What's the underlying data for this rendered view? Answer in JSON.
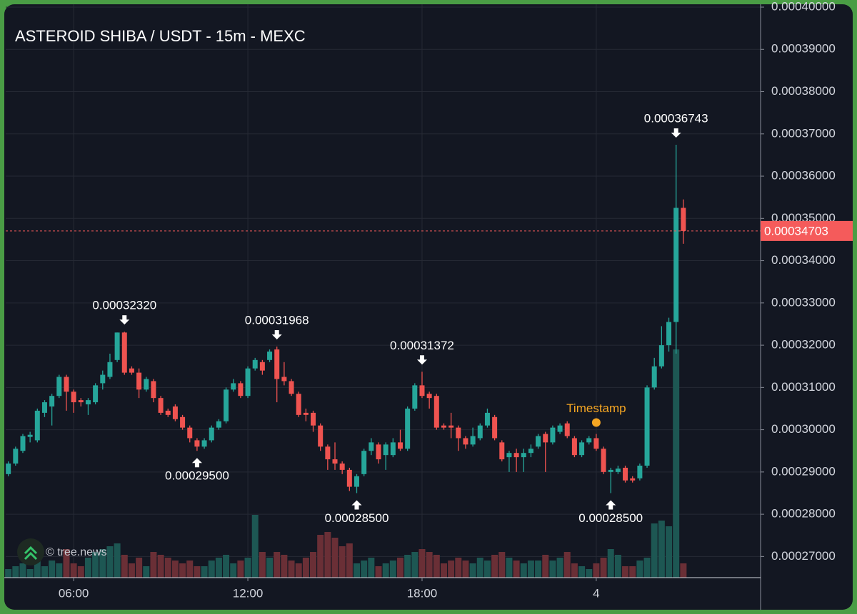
{
  "chart_data": {
    "type": "candlestick",
    "title": "ASTEROID SHIBA / USDT - 15m - MEXC",
    "x": [
      3.75,
      4,
      4.25,
      4.5,
      4.75,
      5,
      5.25,
      5.5,
      5.75,
      6,
      6.25,
      6.5,
      6.75,
      7,
      7.25,
      7.5,
      7.75,
      8,
      8.25,
      8.5,
      8.75,
      9,
      9.25,
      9.5,
      9.75,
      10,
      10.25,
      10.5,
      10.75,
      11,
      11.25,
      11.5,
      11.75,
      12,
      12.25,
      12.5,
      12.75,
      13,
      13.25,
      13.5,
      13.75,
      14,
      14.25,
      14.5,
      14.75,
      15,
      15.25,
      15.5,
      15.75,
      16,
      16.25,
      16.5,
      16.75,
      17,
      17.25,
      17.5,
      17.75,
      18,
      18.25,
      18.5,
      18.75,
      19,
      19.25,
      19.5,
      19.75,
      20,
      20.25,
      20.5,
      20.75,
      21,
      21.25,
      21.5,
      21.75,
      22,
      22.25,
      22.5,
      22.75,
      23,
      23.25,
      23.5,
      23.75,
      24,
      24.25,
      24.5,
      24.75,
      25,
      25.25,
      25.5,
      25.75,
      26,
      26.25,
      26.5,
      26.75,
      27
    ],
    "open": [
      0.0002895,
      0.000292,
      0.000295,
      0.0002983,
      0.0002975,
      0.000304,
      0.0003055,
      0.000308,
      0.0003125,
      0.000309,
      0.000307,
      0.000306,
      0.0003065,
      0.000311,
      0.0003125,
      0.0003165,
      0.000323,
      0.0003145,
      0.0003135,
      0.0003095,
      0.0003115,
      0.0003075,
      0.0003045,
      0.0003055,
      0.000303,
      0.0003005,
      0.0002975,
      0.000296,
      0.0002975,
      0.0003005,
      0.000302,
      0.0003095,
      0.000311,
      0.000308,
      0.0003145,
      0.000316,
      0.0003165,
      0.000319,
      0.0003125,
      0.0003115,
      0.0003085,
      0.000304,
      0.000304,
      0.000301,
      0.000296,
      0.000293,
      0.000292,
      0.0002905,
      0.0002865,
      0.0002895,
      0.000295,
      0.0002965,
      0.000294,
      0.000294,
      0.000297,
      0.0002955,
      0.000305,
      0.0003105,
      0.0003085,
      0.000308,
      0.000301,
      0.000301,
      0.0003005,
      0.000298,
      0.0002965,
      0.000298,
      0.000301,
      0.000303,
      0.000297,
      0.0002935,
      0.0002945,
      0.0002935,
      0.0002945,
      0.000296,
      0.000299,
      0.000297,
      0.0002995,
      0.0003015,
      0.000298,
      0.000294,
      0.000297,
      0.000298,
      0.0002955,
      0.00029,
      0.00029,
      0.000291,
      0.0002885,
      0.0002885,
      0.0002915,
      0.00031,
      0.000315,
      0.00032,
      0.0003255,
      0.0003525
    ],
    "high": [
      0.0002925,
      0.000296,
      0.000299,
      0.0002995,
      0.000305,
      0.000307,
      0.0003085,
      0.000313,
      0.000313,
      0.0003095,
      0.0003075,
      0.0003075,
      0.000311,
      0.000314,
      0.000318,
      0.000323,
      0.0003232,
      0.000315,
      0.0003145,
      0.0003125,
      0.000312,
      0.000308,
      0.000305,
      0.000306,
      0.0003035,
      0.000301,
      0.000298,
      0.000298,
      0.000301,
      0.0003025,
      0.00031,
      0.000312,
      0.0003115,
      0.000315,
      0.000317,
      0.0003165,
      0.000319,
      0.00031968,
      0.000316,
      0.000312,
      0.000309,
      0.000305,
      0.0003045,
      0.0003015,
      0.0002965,
      0.000297,
      0.0002925,
      0.000291,
      0.0002895,
      0.0002955,
      0.000298,
      0.000297,
      0.000297,
      0.000298,
      0.0003,
      0.0003055,
      0.000311,
      0.00031372,
      0.000309,
      0.0003085,
      0.0003015,
      0.000304,
      0.000301,
      0.0002985,
      0.0003005,
      0.0003015,
      0.000305,
      0.0003035,
      0.0002975,
      0.000295,
      0.0002955,
      0.0002955,
      0.0002965,
      0.000299,
      0.0002995,
      0.000301,
      0.0003015,
      0.000302,
      0.0002985,
      0.0002975,
      0.0002985,
      0.000299,
      0.000296,
      0.000291,
      0.0002915,
      0.0002915,
      0.000289,
      0.000292,
      0.0003105,
      0.000317,
      0.0003245,
      0.0003265,
      0.00036743,
      0.0003545
    ],
    "low": [
      0.000289,
      0.0002915,
      0.0002945,
      0.000297,
      0.000297,
      0.000303,
      0.000301,
      0.0003075,
      0.0003045,
      0.000304,
      0.0003055,
      0.0003035,
      0.000306,
      0.0003095,
      0.000312,
      0.000316,
      0.000313,
      0.000313,
      0.0003075,
      0.000309,
      0.0003065,
      0.0003035,
      0.000303,
      0.000302,
      0.0003,
      0.000297,
      0.000295,
      0.0002955,
      0.000297,
      0.0003,
      0.0003015,
      0.000309,
      0.0003075,
      0.0003075,
      0.000314,
      0.000313,
      0.000316,
      0.0003065,
      0.0003105,
      0.000308,
      0.000303,
      0.000302,
      0.0002995,
      0.000295,
      0.0002905,
      0.0002905,
      0.0002895,
      0.0002855,
      0.000285,
      0.000289,
      0.000294,
      0.000292,
      0.0002905,
      0.0002935,
      0.000295,
      0.000295,
      0.0003045,
      0.0003075,
      0.000305,
      0.0003,
      0.0003,
      0.000298,
      0.000295,
      0.0002955,
      0.000296,
      0.0002975,
      0.0003005,
      0.0002975,
      0.0002925,
      0.00029,
      0.00029,
      0.00029,
      0.0002935,
      0.0002955,
      0.00029,
      0.0002965,
      0.000299,
      0.000298,
      0.0002935,
      0.0002935,
      0.0002965,
      0.000295,
      0.0002895,
      0.000285,
      0.0002895,
      0.0002875,
      0.0002875,
      0.000288,
      0.000291,
      0.0003095,
      0.0003145,
      0.0003185,
      0.000318,
      0.000344
    ],
    "close": [
      0.000292,
      0.0002955,
      0.0002985,
      0.0002988,
      0.0003045,
      0.0003065,
      0.000308,
      0.0003125,
      0.000309,
      0.0003065,
      0.0003065,
      0.000307,
      0.0003105,
      0.000313,
      0.000316,
      0.000323,
      0.0003135,
      0.0003135,
      0.0003095,
      0.000312,
      0.0003075,
      0.000304,
      0.0003035,
      0.0003025,
      0.0003005,
      0.000298,
      0.000296,
      0.0002975,
      0.0003005,
      0.000302,
      0.0003095,
      0.000311,
      0.000308,
      0.0003145,
      0.0003165,
      0.000314,
      0.0003185,
      0.000312,
      0.0003115,
      0.0003085,
      0.0003035,
      0.0003035,
      0.000301,
      0.000296,
      0.000293,
      0.000292,
      0.0002905,
      0.0002865,
      0.000289,
      0.000295,
      0.000297,
      0.000293,
      0.0002965,
      0.000297,
      0.0002955,
      0.000305,
      0.0003105,
      0.000308,
      0.0003075,
      0.0003005,
      0.0003005,
      0.0003005,
      0.000298,
      0.0002965,
      0.0002985,
      0.000301,
      0.000304,
      0.000298,
      0.000293,
      0.0002945,
      0.0002935,
      0.0002945,
      0.0002955,
      0.0002985,
      0.000297,
      0.0003005,
      0.000301,
      0.0002985,
      0.000294,
      0.000297,
      0.000298,
      0.0002955,
      0.00029,
      0.0002905,
      0.0002908,
      0.000288,
      0.000288,
      0.0002915,
      0.00031,
      0.000315,
      0.00032,
      0.0003255,
      0.0003525,
      0.00034703
    ],
    "volume": [
      6,
      8,
      10,
      6,
      14,
      8,
      12,
      10,
      20,
      10,
      8,
      14,
      18,
      20,
      22,
      24,
      16,
      10,
      14,
      8,
      18,
      16,
      14,
      12,
      10,
      12,
      8,
      8,
      12,
      14,
      16,
      10,
      12,
      14,
      44,
      18,
      14,
      18,
      16,
      12,
      10,
      14,
      18,
      30,
      32,
      28,
      22,
      24,
      10,
      12,
      14,
      8,
      10,
      12,
      14,
      16,
      18,
      20,
      18,
      16,
      10,
      12,
      14,
      12,
      10,
      14,
      12,
      16,
      18,
      14,
      12,
      10,
      12,
      12,
      16,
      12,
      14,
      18,
      10,
      8,
      6,
      10,
      14,
      20,
      16,
      8,
      8,
      12,
      14,
      38,
      40,
      36,
      160,
      10
    ],
    "volume_ylim": [
      0,
      400
    ],
    "up_color": "#26a69a",
    "down_color": "#ef5350",
    "volume_up_color": "#1d5753",
    "volume_down_color": "#6a2f36",
    "xlim": [
      3.66,
      29.66
    ],
    "xticks": [
      {
        "value": 6,
        "label": "06:00"
      },
      {
        "value": 12,
        "label": "12:00"
      },
      {
        "value": 18,
        "label": "18:00"
      },
      {
        "value": 24,
        "label": "4"
      }
    ],
    "ylim": [
      0.000265,
      0.0004
    ],
    "yticks": [
      {
        "value": 0.00027,
        "label": "0.00027000"
      },
      {
        "value": 0.00028,
        "label": "0.00028000"
      },
      {
        "value": 0.00029,
        "label": "0.00029000"
      },
      {
        "value": 0.0003,
        "label": "0.00030000"
      },
      {
        "value": 0.00031,
        "label": "0.00031000"
      },
      {
        "value": 0.00032,
        "label": "0.00032000"
      },
      {
        "value": 0.00033,
        "label": "0.00033000"
      },
      {
        "value": 0.00034,
        "label": "0.00034000"
      },
      {
        "value": 0.00035,
        "label": "0.00035000"
      },
      {
        "value": 0.00036,
        "label": "0.00036000"
      },
      {
        "value": 0.00037,
        "label": "0.00037000"
      },
      {
        "value": 0.00038,
        "label": "0.00038000"
      },
      {
        "value": 0.00039,
        "label": "0.00039000"
      },
      {
        "value": 0.0004,
        "label": "0.00040000"
      }
    ],
    "grid": true,
    "last_price": {
      "value": 0.00034703,
      "label": "0.00034703",
      "color": "#f55b5b"
    },
    "annotations": [
      {
        "x": 7.75,
        "value": 0.0003232,
        "label": "0.00032320",
        "kind": "high"
      },
      {
        "x": 10.25,
        "value": 0.000295,
        "label": "0.00029500",
        "kind": "low"
      },
      {
        "x": 13,
        "value": 0.00031968,
        "label": "0.00031968",
        "kind": "high"
      },
      {
        "x": 15.75,
        "value": 0.000285,
        "label": "0.00028500",
        "kind": "low"
      },
      {
        "x": 18,
        "value": 0.00031372,
        "label": "0.00031372",
        "kind": "high"
      },
      {
        "x": 24.5,
        "value": 0.000285,
        "label": "0.00028500",
        "kind": "low"
      },
      {
        "x": 26.75,
        "value": 0.00036743,
        "label": "0.00036743",
        "kind": "high"
      }
    ],
    "marker": {
      "x": 24,
      "value": 0.0003017,
      "label": "Timestamp",
      "color": "#f5a623"
    }
  },
  "watermark": "© tree.news"
}
